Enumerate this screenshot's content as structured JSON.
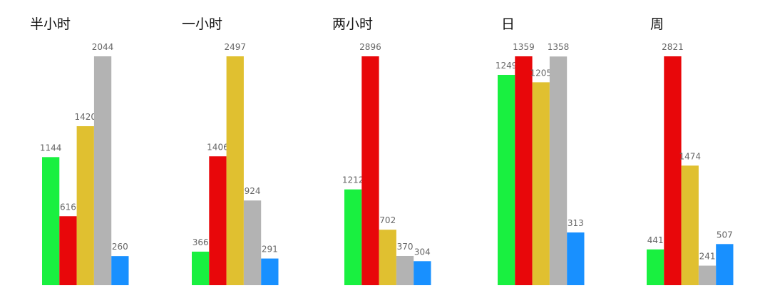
{
  "chart_data": [
    {
      "type": "bar",
      "title": "半小时",
      "categories": [
        null,
        null,
        null,
        null,
        null
      ],
      "values": [
        1144,
        616,
        1420,
        2044,
        260
      ],
      "colors": [
        "#19f040",
        "#e8070a",
        "#e0c030",
        "#b3b3b3",
        "#1890ff"
      ]
    },
    {
      "type": "bar",
      "title": "一小时",
      "categories": [
        null,
        null,
        null,
        null,
        null
      ],
      "values": [
        366,
        1406,
        2497,
        924,
        291
      ],
      "colors": [
        "#19f040",
        "#e8070a",
        "#e0c030",
        "#b3b3b3",
        "#1890ff"
      ]
    },
    {
      "type": "bar",
      "title": "两小时",
      "categories": [
        null,
        null,
        null,
        null,
        null
      ],
      "values": [
        1212,
        2896,
        702,
        370,
        304
      ],
      "colors": [
        "#19f040",
        "#e8070a",
        "#e0c030",
        "#b3b3b3",
        "#1890ff"
      ]
    },
    {
      "type": "bar",
      "title": "日",
      "categories": [
        null,
        null,
        null,
        null,
        null
      ],
      "values": [
        1249,
        1359,
        1205,
        1358,
        313
      ],
      "colors": [
        "#19f040",
        "#e8070a",
        "#e0c030",
        "#b3b3b3",
        "#1890ff"
      ]
    },
    {
      "type": "bar",
      "title": "周",
      "categories": [
        null,
        null,
        null,
        null,
        null
      ],
      "values": [
        441,
        2821,
        1474,
        241,
        507
      ],
      "colors": [
        "#19f040",
        "#e8070a",
        "#e0c030",
        "#b3b3b3",
        "#1890ff"
      ]
    }
  ]
}
